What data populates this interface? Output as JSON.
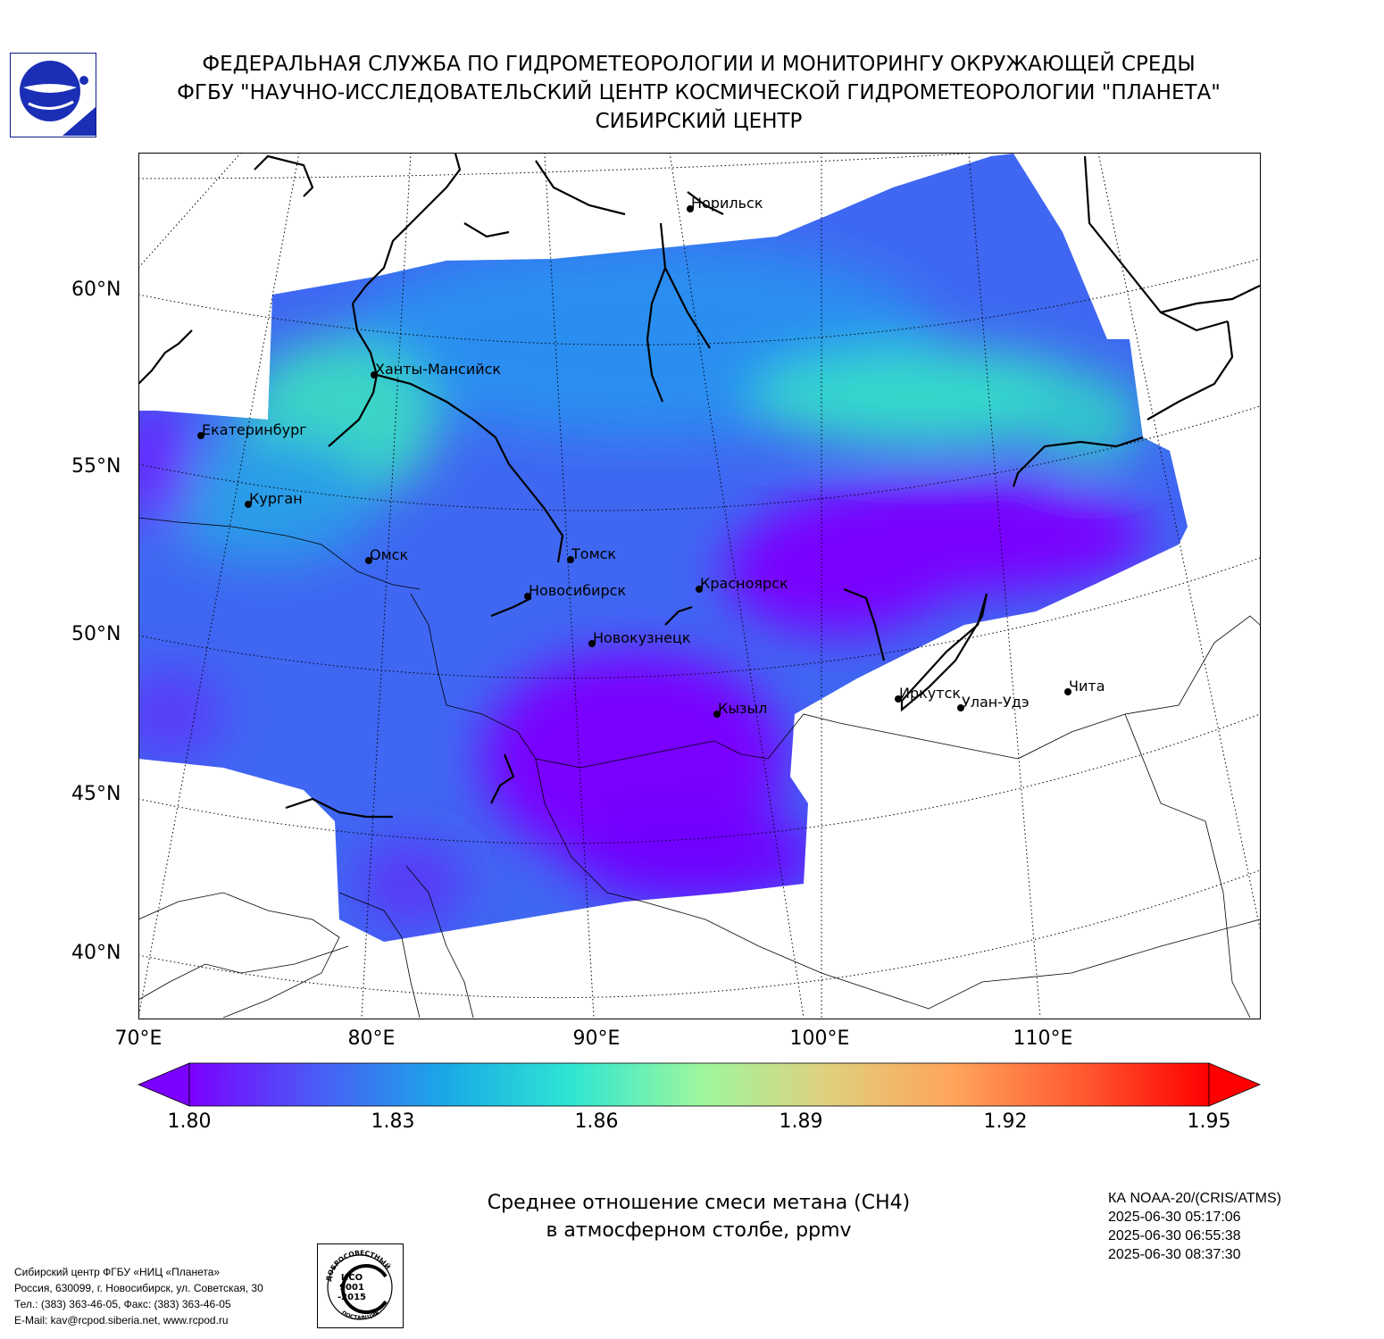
{
  "header": {
    "line1": "ФЕДЕРАЛЬНАЯ СЛУЖБА ПО ГИДРОМЕТЕОРОЛОГИИ И МОНИТОРИНГУ ОКРУЖАЮЩЕЙ СРЕДЫ",
    "line2": "ФГБУ \"НАУЧНО-ИССЛЕДОВАТЕЛЬСКИЙ ЦЕНТР КОСМИЧЕСКОЙ ГИДРОМЕТЕОРОЛОГИИ \"ПЛАНЕТА\"",
    "line3": "СИБИРСКИЙ ЦЕНТР"
  },
  "map": {
    "lat_labels": [
      "60°N",
      "55°N",
      "50°N",
      "45°N",
      "40°N"
    ],
    "lon_labels": [
      "70°E",
      "80°E",
      "90°E",
      "100°E",
      "110°E"
    ],
    "cities": [
      {
        "name": "Норильск"
      },
      {
        "name": "Ханты-Мансийск"
      },
      {
        "name": "Екатеринбург"
      },
      {
        "name": "Курган"
      },
      {
        "name": "Омск"
      },
      {
        "name": "Томск"
      },
      {
        "name": "Новосибирск"
      },
      {
        "name": "Красноярск"
      },
      {
        "name": "Новокузнецк"
      },
      {
        "name": "Кызыл"
      },
      {
        "name": "Иркутск"
      },
      {
        "name": "Улан-Удэ"
      },
      {
        "name": "Чита"
      }
    ]
  },
  "colorbar": {
    "ticks": [
      "1.80",
      "1.83",
      "1.86",
      "1.89",
      "1.92",
      "1.95"
    ],
    "colors": [
      "#7b00ff",
      "#4a5cf6",
      "#1aa8e8",
      "#2ee6d2",
      "#9cf79e",
      "#e0d07e",
      "#ffa45a",
      "#ff5a32",
      "#ff0000"
    ]
  },
  "caption": {
    "line1": "Среднее отношение смеси метана (CH4)",
    "line2": "в атмосферном столбе, ppmv"
  },
  "satellite": {
    "name": "КА NOAA-20/(CRIS/ATMS)",
    "times": [
      "2025-06-30 05:17:06",
      "2025-06-30 06:55:38",
      "2025-06-30 08:37:30"
    ]
  },
  "contacts": [
    "Сибирский центр ФГБУ «НИЦ «Планета»",
    "Россия, 630099, г. Новосибирск, ул. Советская, 30",
    "Тел.: (383) 363-46-05, Факс: (383) 363-46-05",
    "E-Mail: kav@rcpod.siberia.net, www.rcpod.ru"
  ],
  "iso": {
    "arc_top": "ДОБРОСОВЕСТНЫЙ",
    "iso_label": "ИСО",
    "num": "9001",
    "year": "-2015",
    "arc_bottom": "ПОСТАВЩИК"
  }
}
